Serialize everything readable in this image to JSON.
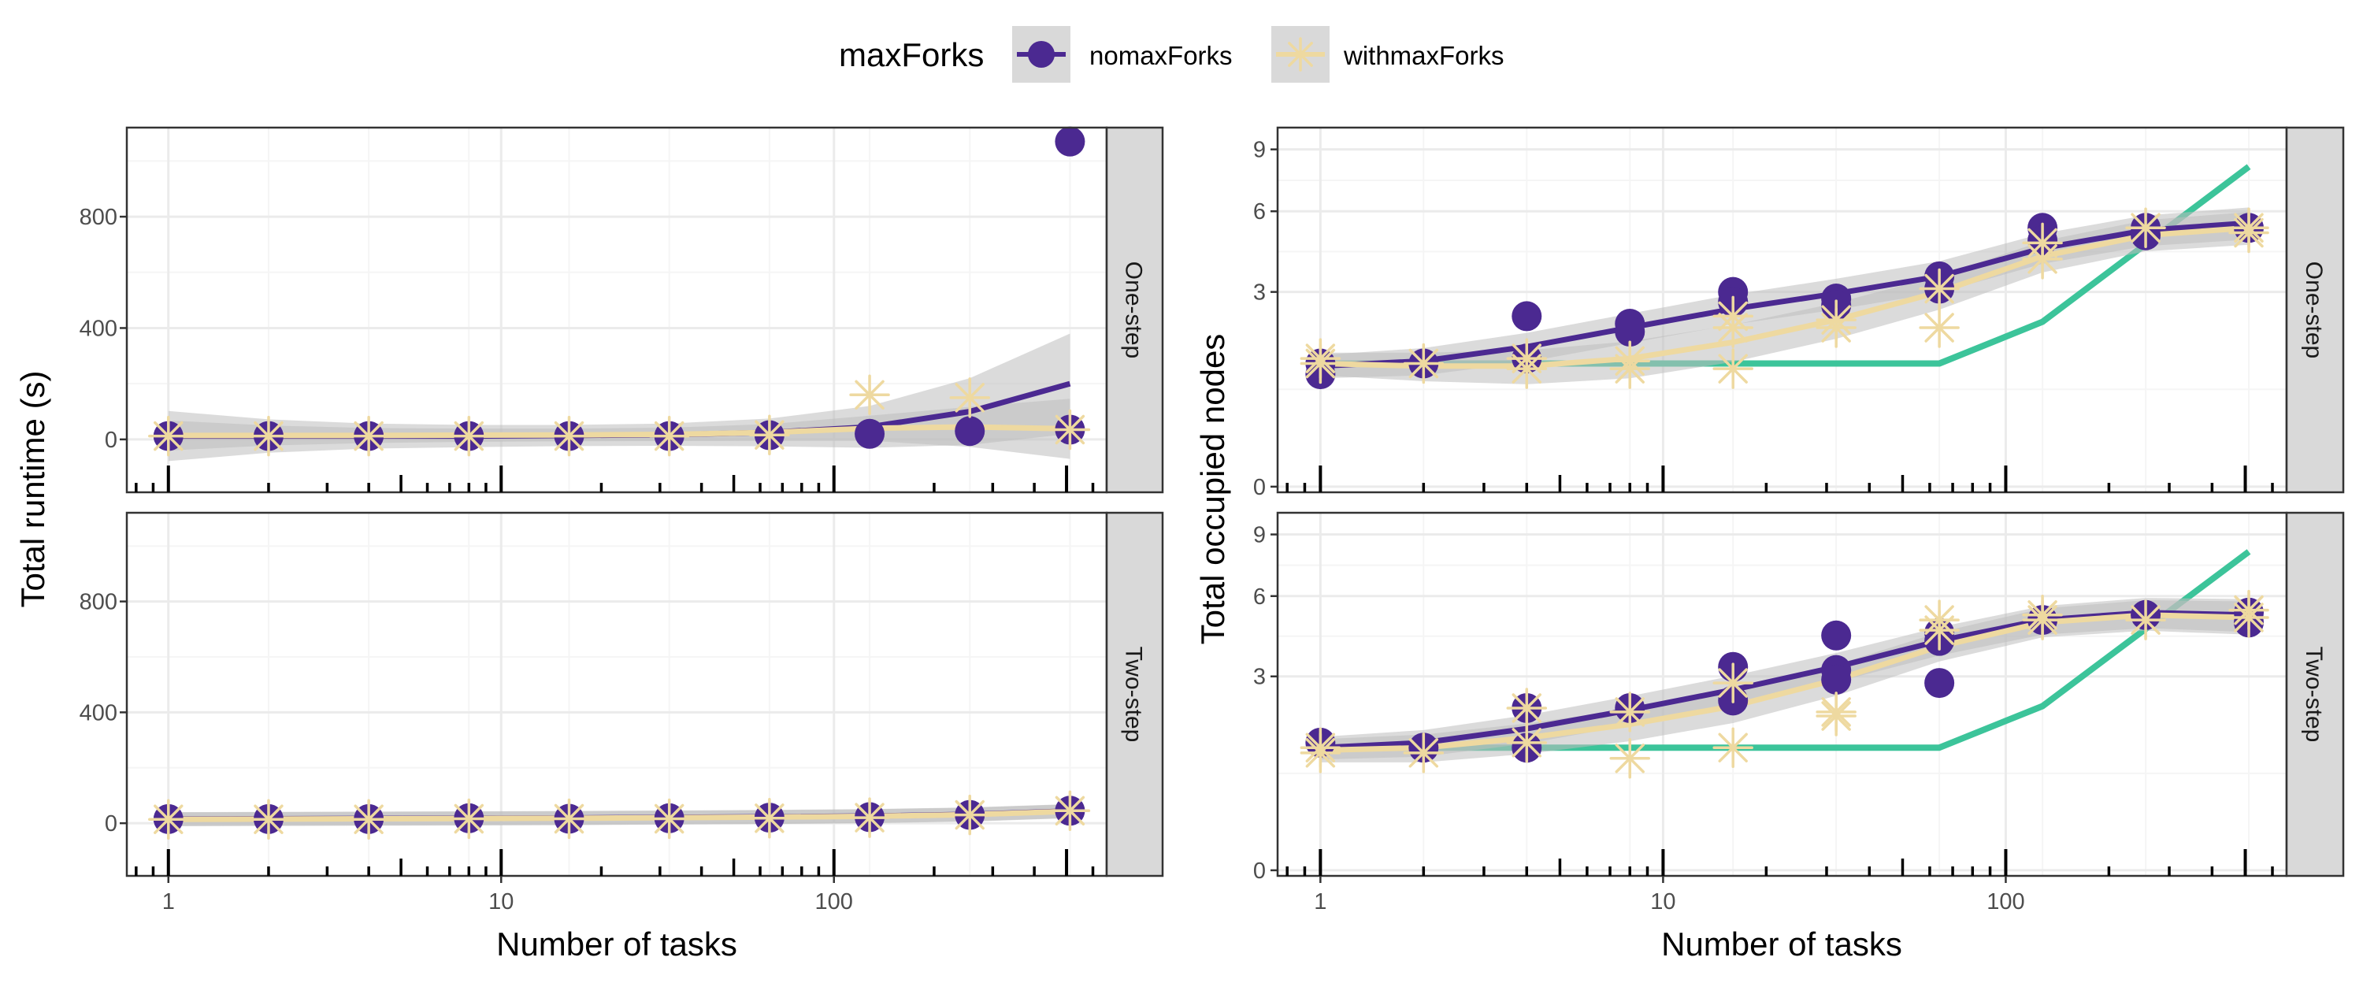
{
  "legend": {
    "title": "maxForks",
    "items": [
      {
        "name": "nomaxForks",
        "color": "#4B2991"
      },
      {
        "name": "withmaxForks",
        "color": "#EED9A0"
      }
    ]
  },
  "colors": {
    "nomaxForks": "#4B2991",
    "withmaxForks": "#EED9A0",
    "reference_line": "#3CC49A",
    "ribbon": "#BEBEBE",
    "strip_bg": "#D9D9D9",
    "grid_major": "#EBEBEB",
    "grid_minor": "#F5F5F5"
  },
  "chart_data": [
    {
      "id": "runtime",
      "type": "scatter",
      "ylabel": "Total runtime (s)",
      "xlabel": "Number of tasks",
      "x_scale": "log10",
      "xlim": [
        0.75,
        660
      ],
      "ylim": [
        -190,
        1120
      ],
      "x_tick_labels": [
        "1",
        "10",
        "100"
      ],
      "y_tick_labels": [
        "0",
        "400",
        "800"
      ],
      "panels": [
        {
          "strip": "One-step",
          "series": [
            {
              "name": "nomaxForks",
              "points": [
                [
                  1,
                  12
                ],
                [
                  2,
                  12
                ],
                [
                  4,
                  12
                ],
                [
                  8,
                  12
                ],
                [
                  16,
                  12
                ],
                [
                  32,
                  12
                ],
                [
                  64,
                  15
                ],
                [
                  128,
                  20
                ],
                [
                  256,
                  30
                ],
                [
                  512,
                  1070
                ],
                [
                  512,
                  35
                ]
              ],
              "smooth": [
                [
                  1,
                  12
                ],
                [
                  2,
                  12
                ],
                [
                  4,
                  12
                ],
                [
                  8,
                  12
                ],
                [
                  16,
                  14
                ],
                [
                  32,
                  17
                ],
                [
                  64,
                  25
                ],
                [
                  128,
                  45
                ],
                [
                  256,
                  100
                ],
                [
                  512,
                  200
                ]
              ]
            },
            {
              "name": "withmaxForks",
              "points": [
                [
                  1,
                  12
                ],
                [
                  2,
                  12
                ],
                [
                  4,
                  12
                ],
                [
                  8,
                  12
                ],
                [
                  16,
                  12
                ],
                [
                  32,
                  12
                ],
                [
                  64,
                  16
                ],
                [
                  128,
                  160
                ],
                [
                  256,
                  150
                ],
                [
                  512,
                  35
                ]
              ],
              "smooth": [
                [
                  1,
                  14
                ],
                [
                  2,
                  14
                ],
                [
                  4,
                  14
                ],
                [
                  8,
                  15
                ],
                [
                  16,
                  16
                ],
                [
                  32,
                  18
                ],
                [
                  64,
                  25
                ],
                [
                  128,
                  40
                ],
                [
                  256,
                  45
                ],
                [
                  512,
                  38
                ]
              ]
            }
          ]
        },
        {
          "strip": "Two-step",
          "series": [
            {
              "name": "nomaxForks",
              "points": [
                [
                  1,
                  15
                ],
                [
                  2,
                  15
                ],
                [
                  4,
                  15
                ],
                [
                  8,
                  18
                ],
                [
                  16,
                  16
                ],
                [
                  32,
                  18
                ],
                [
                  64,
                  20
                ],
                [
                  128,
                  22
                ],
                [
                  256,
                  30
                ],
                [
                  512,
                  45
                ]
              ],
              "smooth": [
                [
                  1,
                  15
                ],
                [
                  2,
                  16
                ],
                [
                  4,
                  17
                ],
                [
                  8,
                  18
                ],
                [
                  16,
                  19
                ],
                [
                  32,
                  21
                ],
                [
                  64,
                  23
                ],
                [
                  128,
                  26
                ],
                [
                  256,
                  32
                ],
                [
                  512,
                  44
                ]
              ]
            },
            {
              "name": "withmaxForks",
              "points": [
                [
                  1,
                  14
                ],
                [
                  2,
                  14
                ],
                [
                  4,
                  14
                ],
                [
                  8,
                  16
                ],
                [
                  16,
                  16
                ],
                [
                  32,
                  16
                ],
                [
                  64,
                  18
                ],
                [
                  128,
                  20
                ],
                [
                  256,
                  30
                ],
                [
                  512,
                  45
                ]
              ],
              "smooth": [
                [
                  1,
                  14
                ],
                [
                  2,
                  15
                ],
                [
                  4,
                  16
                ],
                [
                  8,
                  17
                ],
                [
                  16,
                  18
                ],
                [
                  32,
                  20
                ],
                [
                  64,
                  22
                ],
                [
                  128,
                  25
                ],
                [
                  256,
                  31
                ],
                [
                  512,
                  43
                ]
              ]
            }
          ]
        }
      ]
    },
    {
      "id": "nodes",
      "type": "scatter",
      "ylabel": "Total occupied nodes",
      "xlabel": "Number of tasks",
      "x_scale": "log10",
      "y_scale": "sqrt",
      "xlim": [
        0.75,
        660
      ],
      "ylim": [
        -0.04,
        10.2
      ],
      "x_tick_labels": [
        "1",
        "10",
        "100"
      ],
      "y_tick_labels": [
        "0",
        "3",
        "6",
        "9"
      ],
      "panels": [
        {
          "strip": "One-step",
          "reference_line": [
            [
              1,
              1.2
            ],
            [
              64,
              1.2
            ],
            [
              128,
              2.15
            ],
            [
              512,
              8.1
            ]
          ],
          "series": [
            {
              "name": "nomaxForks",
              "points": [
                [
                  1,
                  1.2
                ],
                [
                  1,
                  1.0
                ],
                [
                  2,
                  1.2
                ],
                [
                  4,
                  2.3
                ],
                [
                  4,
                  1.3
                ],
                [
                  8,
                  2.1
                ],
                [
                  8,
                  1.9
                ],
                [
                  16,
                  3.0
                ],
                [
                  16,
                  2.7
                ],
                [
                  32,
                  2.8
                ],
                [
                  32,
                  2.6
                ],
                [
                  64,
                  3.5
                ],
                [
                  64,
                  3.1
                ],
                [
                  128,
                  5.3
                ],
                [
                  128,
                  4.8
                ],
                [
                  256,
                  5.3
                ],
                [
                  256,
                  5.0
                ],
                [
                  512,
                  5.3
                ]
              ],
              "smooth": [
                [
                  1,
                  1.15
                ],
                [
                  2,
                  1.25
                ],
                [
                  4,
                  1.55
                ],
                [
                  8,
                  2.0
                ],
                [
                  16,
                  2.5
                ],
                [
                  32,
                  2.95
                ],
                [
                  64,
                  3.5
                ],
                [
                  128,
                  4.5
                ],
                [
                  256,
                  5.2
                ],
                [
                  512,
                  5.5
                ]
              ]
            },
            {
              "name": "withmaxForks",
              "points": [
                [
                  1,
                  1.2
                ],
                [
                  1,
                  1.3
                ],
                [
                  2,
                  1.2
                ],
                [
                  4,
                  1.1
                ],
                [
                  4,
                  1.3
                ],
                [
                  8,
                  1.1
                ],
                [
                  8,
                  1.25
                ],
                [
                  16,
                  1.1
                ],
                [
                  16,
                  2.0
                ],
                [
                  16,
                  2.3
                ],
                [
                  32,
                  2.0
                ],
                [
                  32,
                  2.2
                ],
                [
                  64,
                  2.0
                ],
                [
                  64,
                  3.1
                ],
                [
                  128,
                  4.1
                ],
                [
                  128,
                  4.7
                ],
                [
                  256,
                  5.3
                ],
                [
                  512,
                  5.3
                ],
                [
                  512,
                  5.1
                ]
              ],
              "smooth": [
                [
                  1,
                  1.2
                ],
                [
                  2,
                  1.15
                ],
                [
                  4,
                  1.15
                ],
                [
                  8,
                  1.3
                ],
                [
                  16,
                  1.65
                ],
                [
                  32,
                  2.2
                ],
                [
                  64,
                  3.0
                ],
                [
                  128,
                  4.2
                ],
                [
                  256,
                  5.0
                ],
                [
                  512,
                  5.3
                ]
              ]
            }
          ]
        },
        {
          "strip": "Two-step",
          "reference_line": [
            [
              1,
              1.2
            ],
            [
              64,
              1.2
            ],
            [
              128,
              2.15
            ],
            [
              512,
              8.1
            ]
          ],
          "series": [
            {
              "name": "nomaxForks",
              "points": [
                [
                  1,
                  1.3
                ],
                [
                  2,
                  1.2
                ],
                [
                  4,
                  2.1
                ],
                [
                  4,
                  1.2
                ],
                [
                  8,
                  2.1
                ],
                [
                  16,
                  3.3
                ],
                [
                  16,
                  2.3
                ],
                [
                  32,
                  4.4
                ],
                [
                  32,
                  3.2
                ],
                [
                  32,
                  2.9
                ],
                [
                  64,
                  4.5
                ],
                [
                  64,
                  4.2
                ],
                [
                  64,
                  2.8
                ],
                [
                  128,
                  5.0
                ],
                [
                  256,
                  5.2
                ],
                [
                  512,
                  5.3
                ],
                [
                  512,
                  4.9
                ]
              ],
              "smooth": [
                [
                  1,
                  1.2
                ],
                [
                  2,
                  1.3
                ],
                [
                  4,
                  1.6
                ],
                [
                  8,
                  2.05
                ],
                [
                  16,
                  2.6
                ],
                [
                  32,
                  3.3
                ],
                [
                  64,
                  4.2
                ],
                [
                  128,
                  5.0
                ],
                [
                  256,
                  5.3
                ],
                [
                  512,
                  5.2
                ]
              ]
            },
            {
              "name": "withmaxForks",
              "points": [
                [
                  1,
                  1.1
                ],
                [
                  1,
                  1.2
                ],
                [
                  2,
                  1.1
                ],
                [
                  4,
                  2.1
                ],
                [
                  4,
                  1.3
                ],
                [
                  8,
                  1.0
                ],
                [
                  8,
                  2.0
                ],
                [
                  16,
                  1.2
                ],
                [
                  16,
                  2.8
                ],
                [
                  32,
                  1.9
                ],
                [
                  32,
                  2.0
                ],
                [
                  64,
                  5.0
                ],
                [
                  64,
                  4.6
                ],
                [
                  128,
                  5.2
                ],
                [
                  128,
                  5.0
                ],
                [
                  256,
                  5.0
                ],
                [
                  512,
                  5.4
                ],
                [
                  512,
                  5.1
                ]
              ],
              "smooth": [
                [
                  1,
                  1.15
                ],
                [
                  2,
                  1.2
                ],
                [
                  4,
                  1.4
                ],
                [
                  8,
                  1.7
                ],
                [
                  16,
                  2.15
                ],
                [
                  32,
                  2.9
                ],
                [
                  64,
                  4.0
                ],
                [
                  128,
                  4.9
                ],
                [
                  256,
                  5.2
                ],
                [
                  512,
                  5.1
                ]
              ]
            }
          ]
        }
      ]
    }
  ]
}
